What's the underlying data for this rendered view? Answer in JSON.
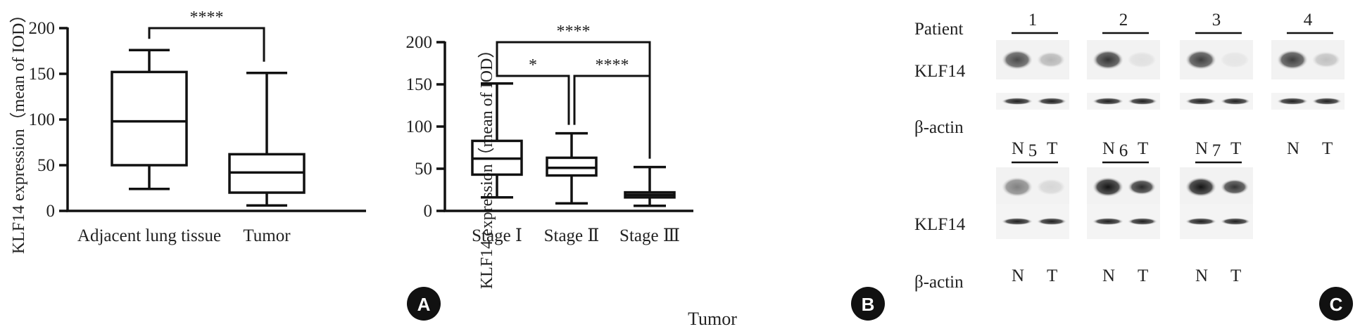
{
  "panels": {
    "A": {
      "label": "A",
      "ylabel": "KLF14 expression（mean of IOD）",
      "yticks": [
        "0",
        "50",
        "100",
        "150",
        "200"
      ],
      "ylim": [
        0,
        200
      ],
      "categories": [
        "Adjacent lung tissue",
        "Tumor"
      ],
      "sig": [
        {
          "from": 0,
          "to": 1,
          "label": "****",
          "level": 200
        }
      ]
    },
    "B": {
      "label": "B",
      "ylabel": "KLF14 expression（mean of IOD）",
      "xlabel": "Tumor",
      "yticks": [
        "0",
        "50",
        "100",
        "150",
        "200"
      ],
      "ylim": [
        0,
        200
      ],
      "categories": [
        "Stage Ⅰ",
        "Stage Ⅱ",
        "Stage Ⅲ"
      ],
      "sig": [
        {
          "from": 0,
          "to": 2,
          "label": "****",
          "level": 200
        },
        {
          "from": 0,
          "to": 1,
          "label": "*",
          "level": 160
        },
        {
          "from": 1,
          "to": 2,
          "label": "****",
          "level": 160
        }
      ]
    },
    "C": {
      "label": "C",
      "patient_label": "Patient",
      "klf14_label": "KLF14",
      "actin_label": "β-actin",
      "lane_n": "N",
      "lane_t": "T",
      "patients_row1": [
        "1",
        "2",
        "3",
        "4"
      ],
      "patients_row2": [
        "5",
        "6",
        "7"
      ],
      "klf14_intensity_row1": [
        [
          0.75,
          0.25
        ],
        [
          0.85,
          0.05
        ],
        [
          0.8,
          0.03
        ],
        [
          0.8,
          0.2
        ]
      ],
      "klf14_intensity_row2": [
        [
          0.5,
          0.1
        ],
        [
          1.0,
          0.9
        ],
        [
          1.0,
          0.85
        ]
      ]
    }
  },
  "chart_data": [
    {
      "type": "box",
      "panel": "A",
      "ylabel": "KLF14 expression（mean of IOD）",
      "ylim": [
        0,
        200
      ],
      "categories": [
        "Adjacent lung tissue",
        "Tumor"
      ],
      "boxes": [
        {
          "min": 24,
          "q1": 50,
          "median": 98,
          "q3": 152,
          "max": 176
        },
        {
          "min": 6,
          "q1": 20,
          "median": 42,
          "q3": 62,
          "max": 151
        }
      ],
      "annotations": [
        "****"
      ]
    },
    {
      "type": "box",
      "panel": "B",
      "ylabel": "KLF14 expression（mean of IOD）",
      "xlabel": "Tumor",
      "ylim": [
        0,
        200
      ],
      "categories": [
        "Stage Ⅰ",
        "Stage Ⅱ",
        "Stage Ⅲ"
      ],
      "boxes": [
        {
          "min": 16,
          "q1": 43,
          "median": 62,
          "q3": 83,
          "max": 151
        },
        {
          "min": 9,
          "q1": 42,
          "median": 51,
          "q3": 63,
          "max": 92
        },
        {
          "min": 6,
          "q1": 16,
          "median": 19,
          "q3": 22,
          "max": 52
        }
      ],
      "annotations": [
        "****",
        "*",
        "****"
      ]
    }
  ]
}
